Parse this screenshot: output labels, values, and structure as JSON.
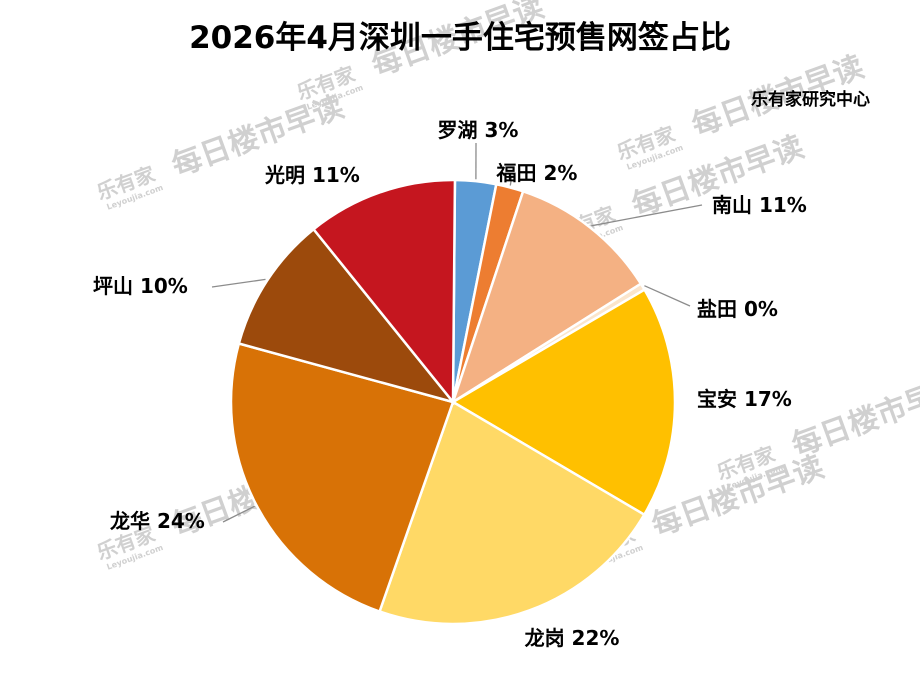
{
  "chart_data": {
    "type": "pie",
    "title": "2026年4月深圳一手住宅预售网签占比",
    "source": "乐有家研究中心",
    "slices": [
      {
        "label": "罗湖",
        "value": 3,
        "display": "罗湖 3%",
        "color": "#5b9bd5"
      },
      {
        "label": "福田",
        "value": 2,
        "display": "福田 2%",
        "color": "#ed7d31"
      },
      {
        "label": "南山",
        "value": 11,
        "display": "南山 11%",
        "color": "#f4b183"
      },
      {
        "label": "盐田",
        "value": 0,
        "display": "盐田 0%",
        "color": "#fbe5cc"
      },
      {
        "label": "宝安",
        "value": 17,
        "display": "宝安 17%",
        "color": "#ffc000"
      },
      {
        "label": "龙岗",
        "value": 22,
        "display": "龙岗 22%",
        "color": "#ffd966"
      },
      {
        "label": "龙华",
        "value": 24,
        "display": "龙华 24%",
        "color": "#d87206"
      },
      {
        "label": "坪山",
        "value": 10,
        "display": "坪山 10%",
        "color": "#9c4a0c"
      },
      {
        "label": "光明",
        "value": 11,
        "display": "光明 11%",
        "color": "#c5161f"
      }
    ],
    "legend": "none",
    "data_labels": "outside"
  },
  "watermark": {
    "text": "每日楼市早读",
    "logo": "乐有家",
    "url": "Leyoujia.com"
  }
}
